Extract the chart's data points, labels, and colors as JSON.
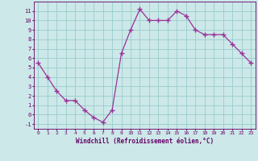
{
  "x": [
    0,
    1,
    2,
    3,
    4,
    5,
    6,
    7,
    8,
    9,
    10,
    11,
    12,
    13,
    14,
    15,
    16,
    17,
    18,
    19,
    20,
    21,
    22,
    23
  ],
  "y": [
    5.5,
    4.0,
    2.5,
    1.5,
    1.5,
    0.5,
    -0.3,
    -0.8,
    0.5,
    6.5,
    9.0,
    11.2,
    10.0,
    10.0,
    10.0,
    11.0,
    10.5,
    9.0,
    8.5,
    8.5,
    8.5,
    7.5,
    6.5,
    5.5
  ],
  "xlabel": "Windchill (Refroidissement éolien,°C)",
  "xlim": [
    -0.5,
    23.5
  ],
  "ylim": [
    -1.5,
    12.0
  ],
  "yticks": [
    -1,
    0,
    1,
    2,
    3,
    4,
    5,
    6,
    7,
    8,
    9,
    10,
    11
  ],
  "xticks": [
    0,
    1,
    2,
    3,
    4,
    5,
    6,
    7,
    8,
    9,
    10,
    11,
    12,
    13,
    14,
    15,
    16,
    17,
    18,
    19,
    20,
    21,
    22,
    23
  ],
  "line_color": "#993399",
  "marker_color": "#993399",
  "bg_color": "#cce8e8",
  "grid_color": "#99cccc",
  "axes_color": "#660066",
  "tick_color": "#660066",
  "label_color": "#660066",
  "font_family": "monospace"
}
